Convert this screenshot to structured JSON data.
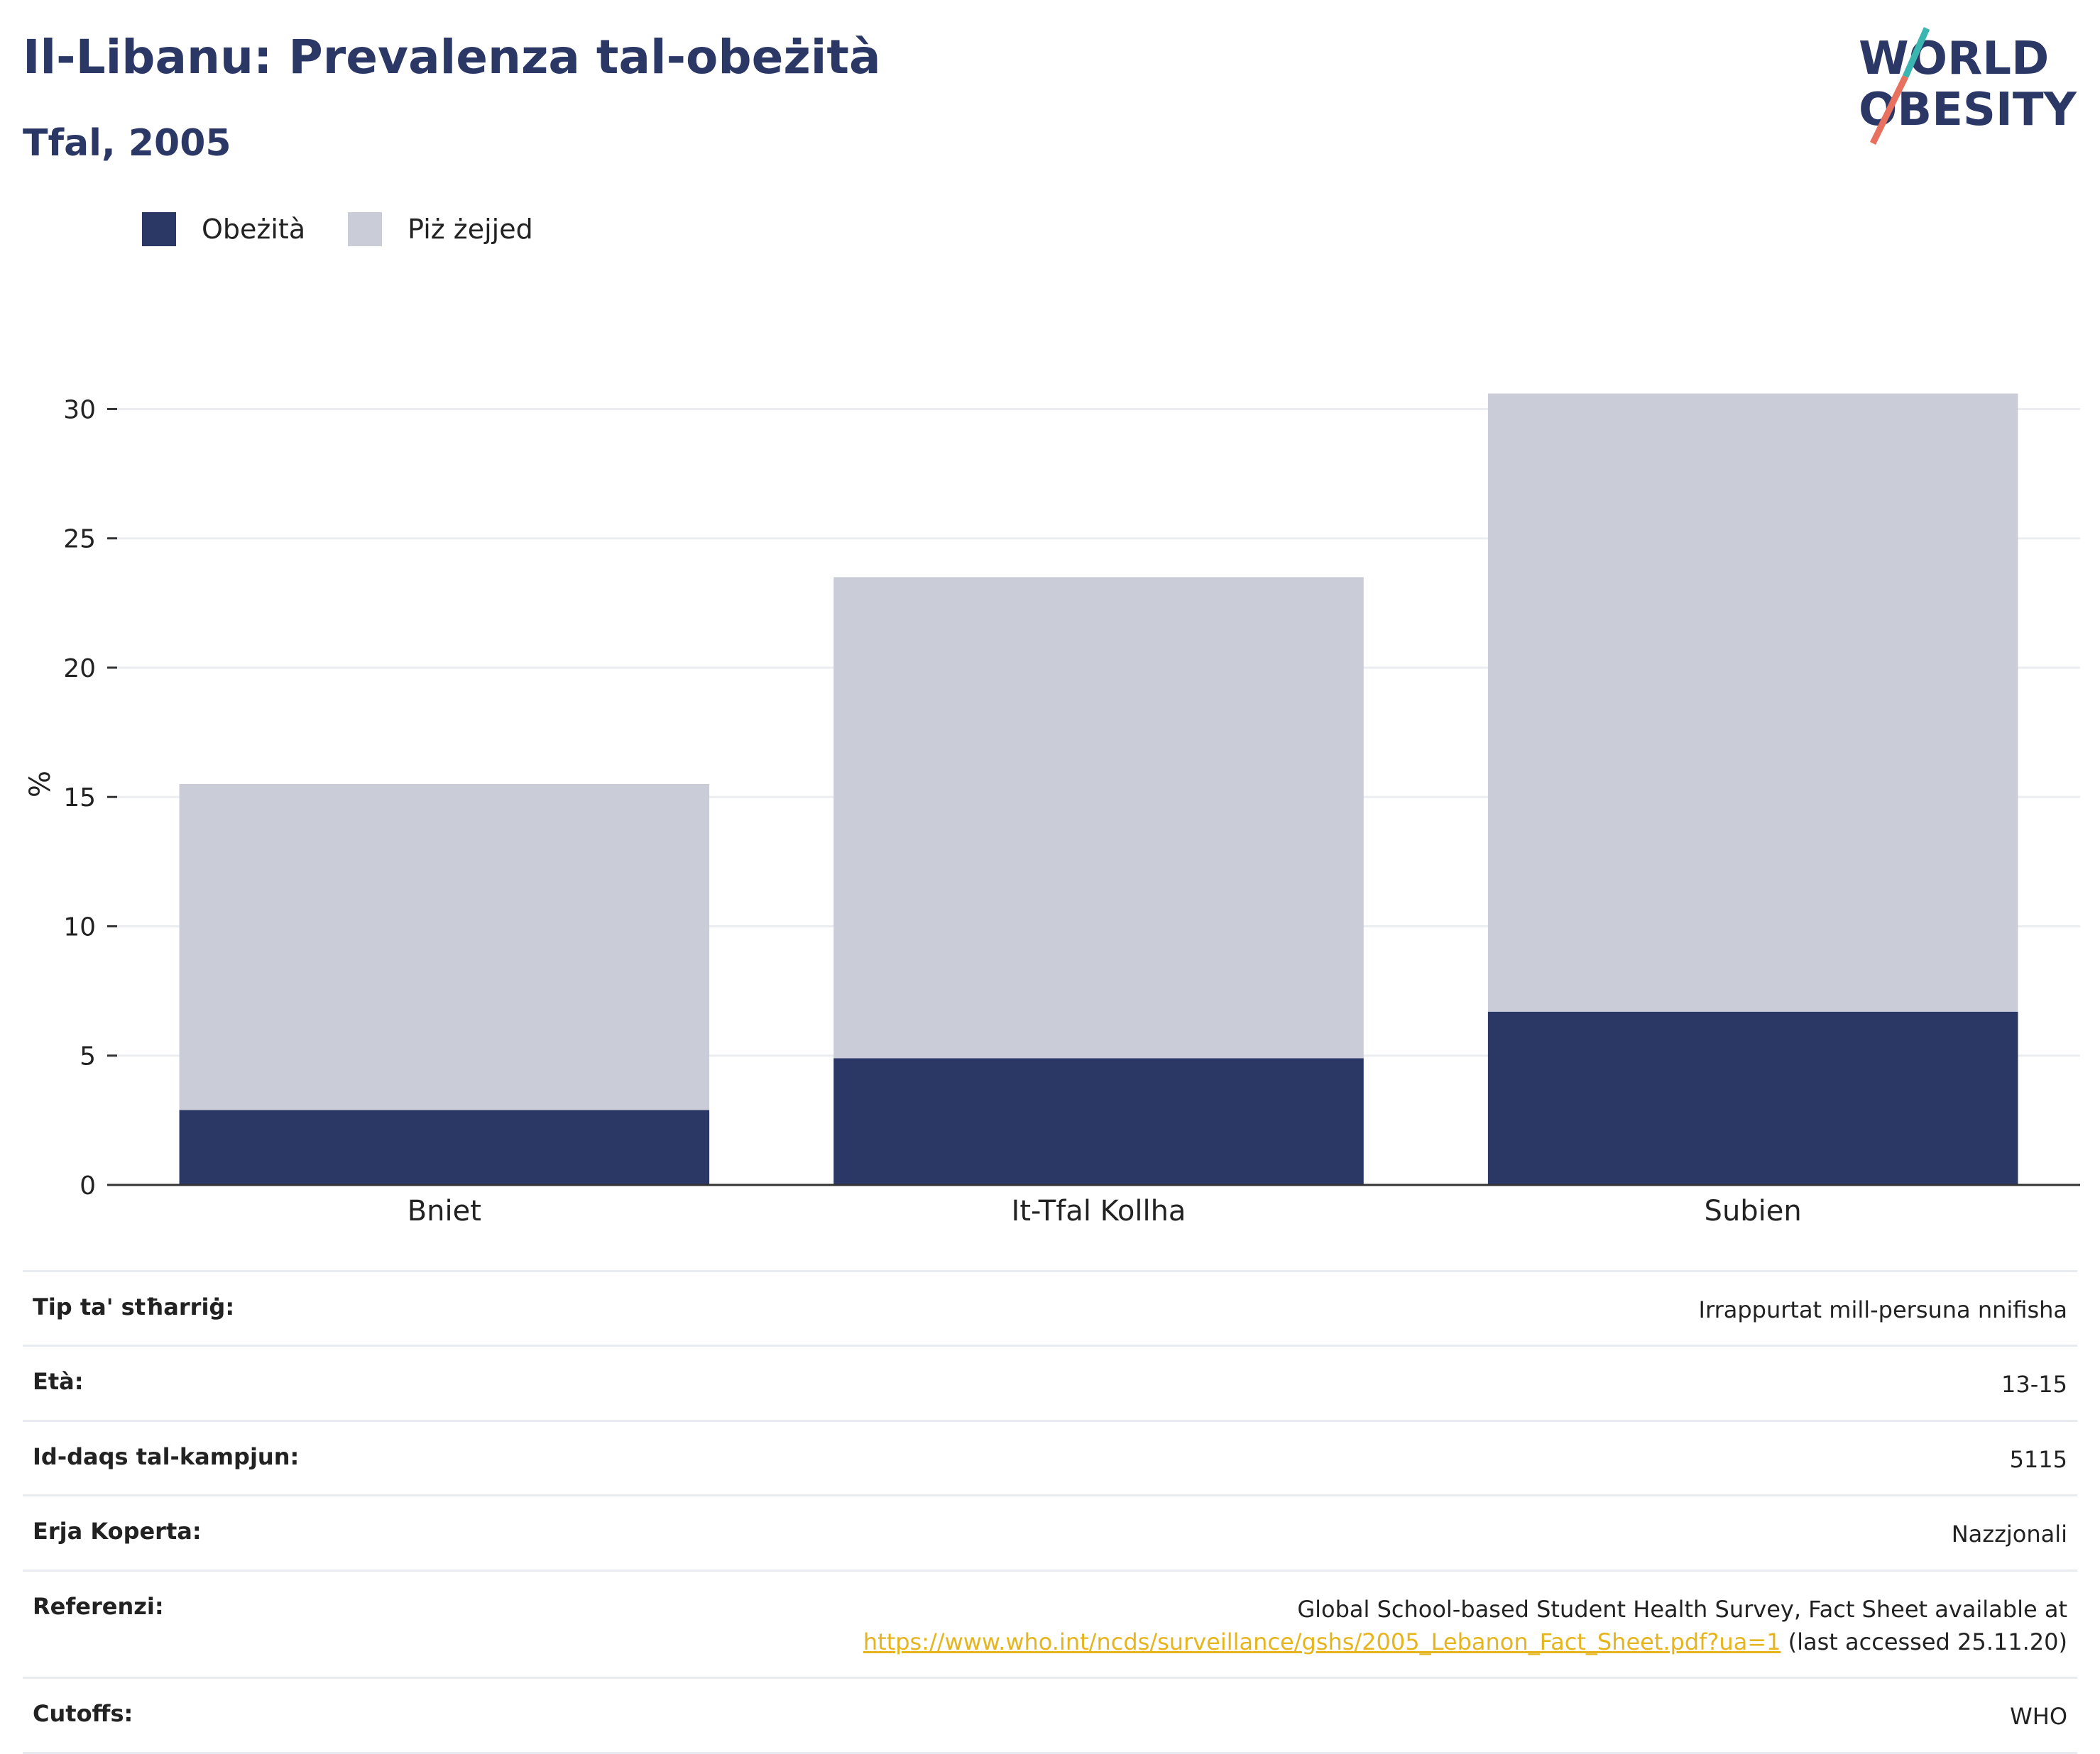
{
  "header": {
    "title": "Il-Libanu: Prevalenza tal-obeżità",
    "subtitle": "Tfal, 2005"
  },
  "logo": {
    "line1": "WORLD",
    "line2": "OBESITY",
    "colors": {
      "text": "#2b3765",
      "slash_top": "#3ab5b0",
      "slash_bottom": "#e8705f"
    }
  },
  "legend": {
    "items": [
      {
        "label": "Obeżità",
        "color": "#2b3765"
      },
      {
        "label": "Piż żejjed",
        "color": "#caccd8"
      }
    ]
  },
  "chart_data": {
    "type": "bar",
    "stacked": true,
    "categories": [
      "Bniet",
      "It-Tfal Kollha",
      "Subien"
    ],
    "series": [
      {
        "name": "Obeżità",
        "values": [
          2.9,
          4.9,
          6.7
        ],
        "color": "#2b3765"
      },
      {
        "name": "Piż żejjed",
        "values": [
          12.6,
          18.6,
          23.9
        ],
        "color": "#caccd8"
      }
    ],
    "ylabel": "%",
    "ylim": [
      0,
      31
    ],
    "yticks": [
      0,
      5,
      10,
      15,
      20,
      25,
      30
    ],
    "grid": true,
    "legend_position": "top-left"
  },
  "meta": {
    "rows": [
      {
        "label": "Tip ta' stħarriġ:",
        "value": "Irrappurtat mill-persuna nnifisha"
      },
      {
        "label": "Età:",
        "value": "13-15"
      },
      {
        "label": "Id-daqs tal-kampjun:",
        "value": "5115"
      },
      {
        "label": "Erja Koperta:",
        "value": "Nazzjonali"
      }
    ],
    "reference": {
      "label": "Referenzi:",
      "line1": "Global School-based Student Health Survey, Fact Sheet available at",
      "link": "https://www.who.int/ncds/surveillance/gshs/2005_Lebanon_Fact_Sheet.pdf?ua=1",
      "suffix": " (last accessed 25.11.20)"
    },
    "cutoffs": {
      "label": "Cutoffs:",
      "value": "WHO"
    }
  }
}
